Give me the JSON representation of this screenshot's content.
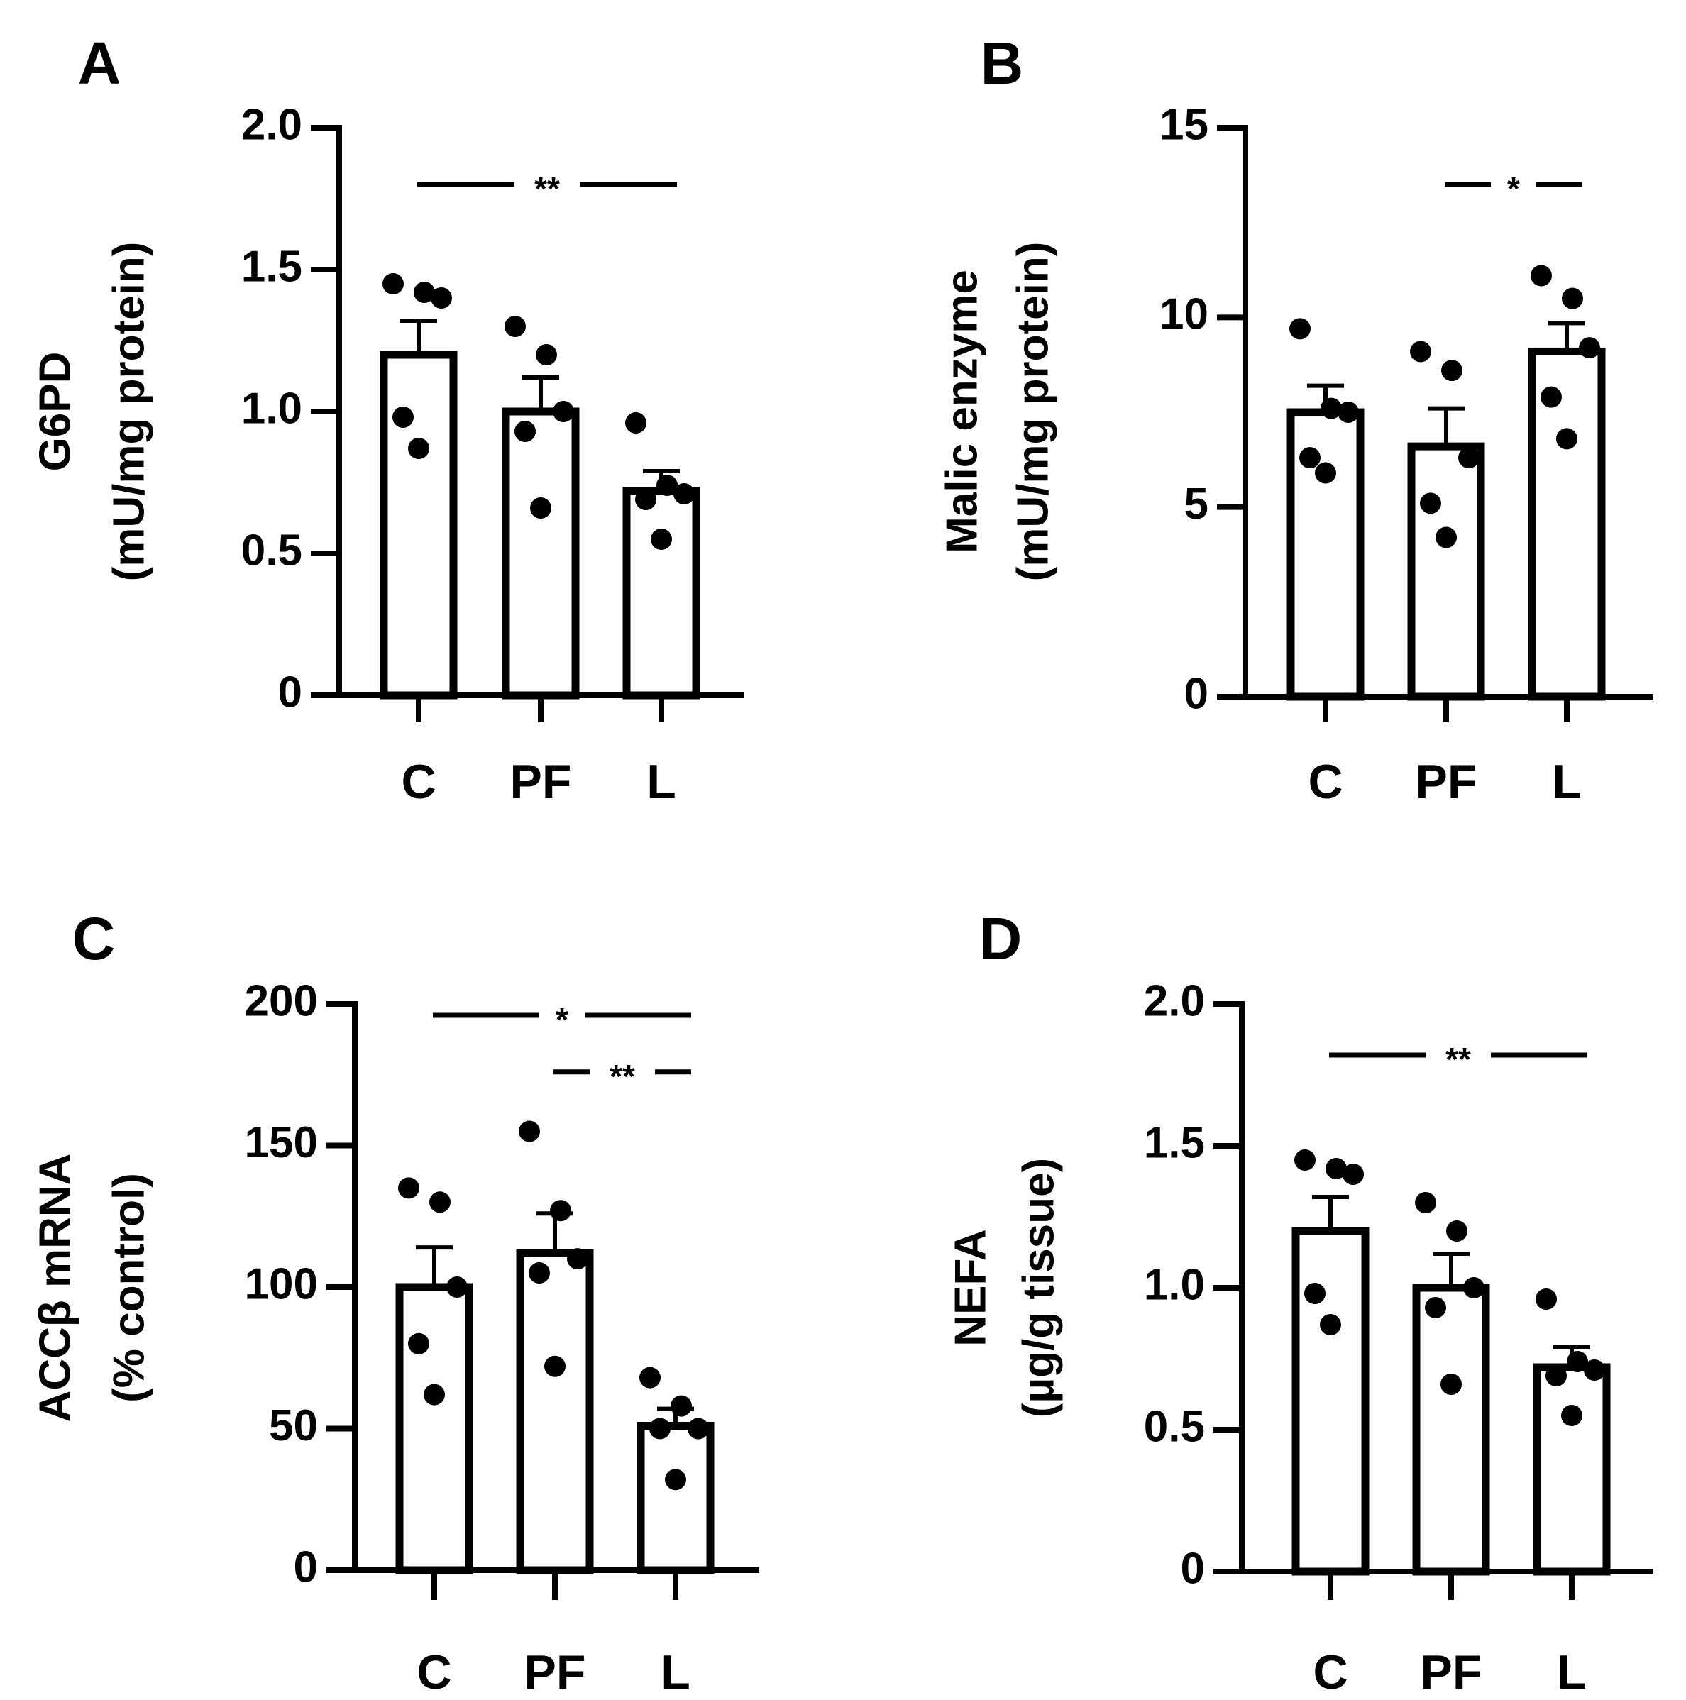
{
  "chart_data": [
    {
      "panel": "A",
      "type": "bar",
      "categories": [
        "C",
        "PF",
        "L"
      ],
      "values": [
        1.2,
        1.0,
        0.72
      ],
      "sem": [
        0.12,
        0.12,
        0.07
      ],
      "points": [
        [
          1.45,
          1.42,
          1.4,
          0.98,
          0.87
        ],
        [
          1.3,
          1.2,
          1.0,
          0.93,
          0.66
        ],
        [
          0.96,
          0.74,
          0.71,
          0.69,
          0.55
        ]
      ],
      "ylim": [
        0,
        2.0
      ],
      "ticks": [
        0,
        0.5,
        1.0,
        1.5,
        2.0
      ],
      "tick_labels": [
        "0",
        "0.5",
        "1.0",
        "1.5",
        "2.0"
      ],
      "ylabel_line1": "G6PD",
      "ylabel_line2": "(mU/mg protein)",
      "significance": [
        {
          "from": 0,
          "to": 2,
          "y": 1.8,
          "label": "**"
        }
      ]
    },
    {
      "panel": "B",
      "type": "bar",
      "categories": [
        "C",
        "PF",
        "L"
      ],
      "values": [
        7.5,
        6.6,
        9.1
      ],
      "sem": [
        0.7,
        1.0,
        0.75
      ],
      "points": [
        [
          9.7,
          7.6,
          7.5,
          6.3,
          5.9
        ],
        [
          9.1,
          8.6,
          6.3,
          5.1,
          4.2
        ],
        [
          11.1,
          10.5,
          9.2,
          7.9,
          6.8
        ]
      ],
      "ylim": [
        0,
        15
      ],
      "ticks": [
        0,
        5,
        10,
        15
      ],
      "tick_labels": [
        "0",
        "5",
        "10",
        "15"
      ],
      "ylabel_line1": "Malic enzyme",
      "ylabel_line2": "(mU/mg protein)",
      "significance": [
        {
          "from": 1,
          "to": 2,
          "y": 13.5,
          "label": "*"
        }
      ]
    },
    {
      "panel": "C",
      "type": "bar",
      "categories": [
        "C",
        "PF",
        "L"
      ],
      "values": [
        100,
        112,
        51
      ],
      "sem": [
        14,
        14,
        6
      ],
      "points": [
        [
          135,
          130,
          100,
          80,
          62
        ],
        [
          155,
          127,
          110,
          105,
          72
        ],
        [
          68,
          58,
          50,
          50,
          32
        ]
      ],
      "ylim": [
        0,
        200
      ],
      "ticks": [
        0,
        50,
        100,
        150,
        200
      ],
      "tick_labels": [
        "0",
        "50",
        "100",
        "150",
        "200"
      ],
      "ylabel_line1": "ACCβ mRNA",
      "ylabel_line2": "(% control)",
      "significance": [
        {
          "from": 0,
          "to": 2,
          "y": 196,
          "label": "*"
        },
        {
          "from": 1,
          "to": 2,
          "y": 176,
          "label": "**"
        }
      ]
    },
    {
      "panel": "D",
      "type": "bar",
      "categories": [
        "C",
        "PF",
        "L"
      ],
      "values": [
        1.2,
        1.0,
        0.72
      ],
      "sem": [
        0.12,
        0.12,
        0.07
      ],
      "points": [
        [
          1.45,
          1.42,
          1.4,
          0.98,
          0.87
        ],
        [
          1.3,
          1.2,
          1.0,
          0.93,
          0.66
        ],
        [
          0.96,
          0.74,
          0.71,
          0.69,
          0.55
        ]
      ],
      "ylim": [
        0,
        2.0
      ],
      "ticks": [
        0,
        0.5,
        1.0,
        1.5,
        2.0
      ],
      "tick_labels": [
        "0",
        "0.5",
        "1.0",
        "1.5",
        "2.0"
      ],
      "ylabel_line1": "NEFA",
      "ylabel_line2": "(µg/g tissue)",
      "significance": [
        {
          "from": 0,
          "to": 2,
          "y": 1.82,
          "label": "**"
        }
      ]
    }
  ]
}
